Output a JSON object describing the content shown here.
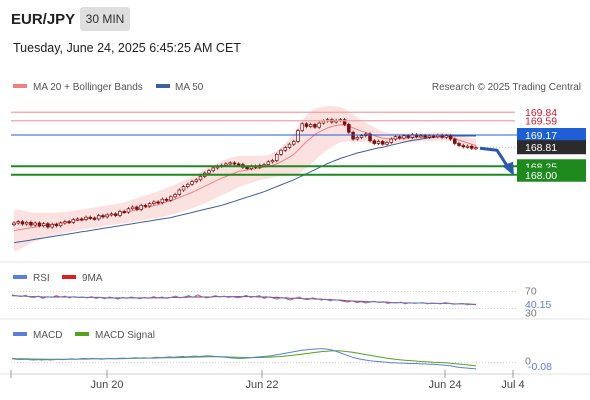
{
  "header": {
    "symbol": "EUR/JPY",
    "timeframe": "30 MIN",
    "datetime": "Tuesday, June 24, 2025 6:45:25 AM CET"
  },
  "legend": {
    "ma20_bb": "MA 20 + Bollinger Bands",
    "ma50": "MA 50",
    "copyright": "Research © 2025 Trading Central",
    "rsi": "RSI",
    "rsi_ma": "9MA",
    "macd": "MACD",
    "macd_signal": "MACD Signal"
  },
  "colors": {
    "resistance": "#f2a0a0",
    "resistance_label": "#d0192b",
    "pivot": "#1f5fd6",
    "support": "#1e8a1e",
    "ma20": "#f08080",
    "ma50": "#3f5f9f",
    "bb_fill": "#fbdcdc",
    "candle": "#7a0e0e",
    "rsi": "#5b7fd8",
    "rsi_ma": "#d92020",
    "macd": "#5b7fd8",
    "macd_signal": "#54a21e",
    "arrow": "#2b5aa8"
  },
  "chart_data": [
    {
      "type": "candlestick",
      "x_tick_labels": [
        "Jun 20",
        "Jun 22",
        "Jun 24",
        "Jul 4"
      ],
      "ylim": [
        165.55,
        170.2
      ],
      "levels": [
        {
          "label": "169.84",
          "value": 169.84,
          "kind": "resistance"
        },
        {
          "label": "169.59",
          "value": 169.59,
          "kind": "resistance"
        },
        {
          "label": "169.17",
          "value": 169.17,
          "kind": "pivot"
        },
        {
          "label": "168.81",
          "value": 168.81,
          "kind": "last"
        },
        {
          "label": "168.25",
          "value": 168.25,
          "kind": "support"
        },
        {
          "label": "168.00",
          "value": 168.0,
          "kind": "support"
        }
      ],
      "close": [
        166.58,
        166.62,
        166.55,
        166.6,
        166.52,
        166.58,
        166.5,
        166.56,
        166.46,
        166.54,
        166.5,
        166.58,
        166.62,
        166.6,
        166.68,
        166.7,
        166.68,
        166.75,
        166.72,
        166.7,
        166.8,
        166.76,
        166.82,
        166.85,
        166.8,
        166.92,
        166.9,
        167.0,
        167.05,
        166.98,
        167.1,
        167.08,
        167.15,
        167.2,
        167.18,
        167.28,
        167.25,
        167.35,
        167.42,
        167.55,
        167.65,
        167.72,
        167.8,
        167.85,
        167.95,
        168.05,
        168.12,
        168.2,
        168.25,
        168.28,
        168.32,
        168.35,
        168.32,
        168.3,
        168.22,
        168.18,
        168.25,
        168.22,
        168.28,
        168.3,
        168.38,
        168.42,
        168.6,
        168.72,
        168.8,
        168.9,
        168.98,
        169.3,
        169.5,
        169.42,
        169.48,
        169.4,
        169.52,
        169.58,
        169.62,
        169.55,
        169.6,
        169.62,
        169.48,
        169.25,
        169.05,
        169.1,
        169.15,
        169.2,
        169.0,
        168.92,
        168.98,
        168.9,
        168.95,
        169.05,
        169.12,
        169.08,
        169.15,
        169.1,
        169.18,
        169.12,
        169.15,
        169.1,
        169.14,
        169.12,
        169.16,
        169.1,
        169.15,
        169.05,
        168.92,
        168.86,
        168.82,
        168.84,
        168.78,
        168.8
      ],
      "ma20": [
        166.35,
        166.38,
        166.4,
        166.42,
        166.44,
        166.46,
        166.48,
        166.5,
        166.52,
        166.54,
        166.56,
        166.58,
        166.6,
        166.62,
        166.64,
        166.66,
        166.68,
        166.7,
        166.72,
        166.74,
        166.76,
        166.78,
        166.8,
        166.82,
        166.84,
        166.86,
        166.88,
        166.91,
        166.94,
        166.97,
        167.0,
        167.03,
        167.06,
        167.09,
        167.12,
        167.16,
        167.2,
        167.24,
        167.28,
        167.33,
        167.38,
        167.43,
        167.48,
        167.54,
        167.6,
        167.66,
        167.72,
        167.78,
        167.84,
        167.9,
        167.95,
        168.0,
        168.05,
        168.1,
        168.12,
        168.14,
        168.16,
        168.18,
        168.2,
        168.22,
        168.24,
        168.28,
        168.32,
        168.38,
        168.45,
        168.52,
        168.6,
        168.72,
        168.85,
        168.98,
        169.08,
        169.18,
        169.26,
        169.32,
        169.38,
        169.42,
        169.45,
        169.47,
        169.46,
        169.42,
        169.38,
        169.33,
        169.28,
        169.25,
        169.2,
        169.15,
        169.11,
        169.08,
        169.06,
        169.06,
        169.06,
        169.07,
        169.08,
        169.08,
        169.09,
        169.1,
        169.11,
        169.11,
        169.11,
        169.11,
        169.12,
        169.12,
        169.12,
        169.1,
        169.06,
        169.02,
        168.98,
        168.94,
        168.9,
        168.86
      ],
      "ma50": [
        166.0,
        166.02,
        166.04,
        166.06,
        166.08,
        166.1,
        166.12,
        166.14,
        166.16,
        166.18,
        166.2,
        166.22,
        166.24,
        166.26,
        166.28,
        166.3,
        166.32,
        166.34,
        166.36,
        166.38,
        166.4,
        166.42,
        166.44,
        166.46,
        166.48,
        166.5,
        166.52,
        166.54,
        166.56,
        166.58,
        166.6,
        166.62,
        166.64,
        166.66,
        166.68,
        166.7,
        166.72,
        166.74,
        166.77,
        166.8,
        166.83,
        166.86,
        166.89,
        166.92,
        166.95,
        166.98,
        167.01,
        167.04,
        167.07,
        167.1,
        167.14,
        167.18,
        167.22,
        167.26,
        167.3,
        167.34,
        167.38,
        167.42,
        167.46,
        167.5,
        167.55,
        167.6,
        167.65,
        167.7,
        167.75,
        167.8,
        167.85,
        167.91,
        167.97,
        168.03,
        168.09,
        168.15,
        168.21,
        168.27,
        168.33,
        168.38,
        168.43,
        168.48,
        168.52,
        168.56,
        168.6,
        168.64,
        168.67,
        168.7,
        168.73,
        168.76,
        168.79,
        168.81,
        168.84,
        168.87,
        168.9,
        168.93,
        168.96,
        168.99,
        169.01,
        169.03,
        169.05,
        169.07,
        169.09,
        169.1,
        169.11,
        169.12,
        169.13,
        169.14,
        169.14,
        169.14,
        169.14,
        169.14,
        169.14,
        169.14
      ],
      "bb_width": [
        0.6,
        0.6,
        0.55,
        0.5,
        0.45,
        0.42,
        0.4,
        0.38,
        0.36,
        0.34,
        0.33,
        0.32,
        0.31,
        0.3,
        0.3,
        0.3,
        0.3,
        0.3,
        0.3,
        0.3,
        0.3,
        0.3,
        0.3,
        0.3,
        0.3,
        0.3,
        0.31,
        0.32,
        0.33,
        0.34,
        0.35,
        0.36,
        0.37,
        0.38,
        0.39,
        0.4,
        0.41,
        0.42,
        0.43,
        0.44,
        0.45,
        0.46,
        0.47,
        0.48,
        0.49,
        0.5,
        0.5,
        0.5,
        0.5,
        0.5,
        0.5,
        0.5,
        0.48,
        0.46,
        0.44,
        0.42,
        0.4,
        0.38,
        0.36,
        0.35,
        0.35,
        0.36,
        0.38,
        0.42,
        0.48,
        0.55,
        0.62,
        0.7,
        0.75,
        0.78,
        0.78,
        0.76,
        0.72,
        0.68,
        0.64,
        0.6,
        0.56,
        0.52,
        0.48,
        0.44,
        0.4,
        0.36,
        0.32,
        0.28,
        0.26,
        0.24,
        0.22,
        0.2,
        0.18,
        0.17,
        0.16,
        0.15,
        0.14,
        0.13,
        0.12,
        0.12,
        0.12,
        0.12,
        0.12,
        0.12,
        0.12,
        0.12,
        0.12,
        0.12,
        0.13,
        0.14,
        0.15,
        0.16,
        0.17,
        0.18
      ],
      "projection": [
        168.81,
        168.0
      ]
    },
    {
      "type": "line",
      "name": "RSI",
      "tick_labels": [
        "70",
        "40.15",
        "30"
      ],
      "ylim": [
        15,
        85
      ],
      "series": [
        {
          "name": "RSI",
          "values": [
            62,
            60,
            58,
            61,
            57,
            56,
            59,
            54,
            58,
            56,
            60,
            57,
            59,
            55,
            58,
            56,
            57,
            55,
            58,
            54,
            56,
            53,
            57,
            55,
            52,
            56,
            54,
            57,
            55,
            53,
            56,
            54,
            58,
            55,
            57,
            54,
            56,
            59,
            55,
            57,
            60,
            56,
            62,
            58,
            55,
            57,
            60,
            57,
            59,
            56,
            58,
            55,
            57,
            61,
            56,
            58,
            60,
            54,
            57,
            55,
            52,
            56,
            53,
            50,
            54,
            57,
            52,
            51,
            55,
            53,
            50,
            52,
            48,
            51,
            49,
            47,
            45,
            48,
            44,
            46,
            43,
            45,
            47,
            44,
            46,
            42,
            44,
            43,
            45,
            41,
            44,
            42,
            43,
            44,
            41,
            43,
            42,
            41,
            44,
            42,
            40,
            41,
            42,
            39,
            40,
            40.15
          ]
        },
        {
          "name": "9MA",
          "values": [
            60,
            60,
            59,
            59,
            58,
            58,
            58,
            57,
            57,
            57,
            57,
            57,
            57,
            57,
            57,
            56,
            56,
            56,
            56,
            56,
            56,
            55,
            55,
            55,
            55,
            55,
            55,
            55,
            55,
            55,
            55,
            55,
            55,
            55,
            55,
            55,
            56,
            56,
            56,
            56,
            57,
            57,
            57,
            57,
            57,
            57,
            58,
            58,
            58,
            58,
            58,
            58,
            58,
            58,
            58,
            58,
            57,
            57,
            57,
            56,
            56,
            55,
            55,
            54,
            54,
            54,
            53,
            53,
            53,
            52,
            52,
            51,
            51,
            50,
            50,
            49,
            48,
            48,
            47,
            47,
            46,
            46,
            46,
            45,
            45,
            45,
            44,
            44,
            44,
            43,
            43,
            43,
            43,
            43,
            42,
            42,
            42,
            42,
            42,
            42,
            41,
            41,
            41,
            41,
            40,
            39
          ]
        }
      ]
    },
    {
      "type": "line",
      "name": "MACD",
      "tick_labels": [
        "0",
        "-0.08"
      ],
      "ylim": [
        -0.12,
        0.28
      ],
      "series": [
        {
          "name": "MACD",
          "values": [
            0.05,
            0.045,
            0.04,
            0.045,
            0.04,
            0.035,
            0.04,
            0.035,
            0.04,
            0.035,
            0.04,
            0.045,
            0.04,
            0.045,
            0.05,
            0.045,
            0.05,
            0.055,
            0.05,
            0.055,
            0.05,
            0.045,
            0.05,
            0.055,
            0.05,
            0.055,
            0.06,
            0.055,
            0.06,
            0.065,
            0.06,
            0.065,
            0.06,
            0.065,
            0.07,
            0.065,
            0.07,
            0.075,
            0.07,
            0.075,
            0.08,
            0.075,
            0.08,
            0.085,
            0.08,
            0.085,
            0.09,
            0.085,
            0.08,
            0.075,
            0.07,
            0.065,
            0.06,
            0.055,
            0.055,
            0.06,
            0.065,
            0.07,
            0.075,
            0.08,
            0.085,
            0.09,
            0.1,
            0.11,
            0.12,
            0.13,
            0.14,
            0.15,
            0.16,
            0.165,
            0.17,
            0.175,
            0.18,
            0.18,
            0.175,
            0.165,
            0.15,
            0.13,
            0.11,
            0.09,
            0.07,
            0.055,
            0.045,
            0.035,
            0.025,
            0.02,
            0.015,
            0.01,
            0.005,
            0.0,
            0.0,
            -0.005,
            -0.005,
            -0.01,
            -0.01,
            -0.01,
            -0.015,
            -0.015,
            -0.02,
            -0.02,
            -0.025,
            -0.03,
            -0.035,
            -0.04,
            -0.05,
            -0.06,
            -0.065,
            -0.07,
            -0.075,
            -0.08
          ]
        },
        {
          "name": "MACD Signal",
          "values": [
            0.055,
            0.053,
            0.051,
            0.05,
            0.049,
            0.048,
            0.047,
            0.046,
            0.045,
            0.044,
            0.044,
            0.044,
            0.044,
            0.044,
            0.045,
            0.045,
            0.046,
            0.047,
            0.048,
            0.049,
            0.05,
            0.05,
            0.05,
            0.05,
            0.051,
            0.052,
            0.053,
            0.054,
            0.055,
            0.056,
            0.057,
            0.058,
            0.059,
            0.06,
            0.061,
            0.062,
            0.063,
            0.064,
            0.065,
            0.066,
            0.067,
            0.068,
            0.07,
            0.072,
            0.073,
            0.075,
            0.077,
            0.078,
            0.078,
            0.077,
            0.076,
            0.074,
            0.072,
            0.07,
            0.068,
            0.067,
            0.066,
            0.066,
            0.067,
            0.068,
            0.07,
            0.073,
            0.076,
            0.08,
            0.085,
            0.09,
            0.096,
            0.103,
            0.11,
            0.117,
            0.124,
            0.131,
            0.138,
            0.144,
            0.149,
            0.152,
            0.153,
            0.152,
            0.148,
            0.142,
            0.134,
            0.125,
            0.116,
            0.106,
            0.096,
            0.086,
            0.077,
            0.068,
            0.06,
            0.052,
            0.045,
            0.039,
            0.033,
            0.028,
            0.024,
            0.02,
            0.016,
            0.013,
            0.01,
            0.007,
            0.004,
            0.001,
            -0.002,
            -0.006,
            -0.011,
            -0.017,
            -0.023,
            -0.029,
            -0.035,
            -0.041
          ]
        }
      ]
    }
  ]
}
